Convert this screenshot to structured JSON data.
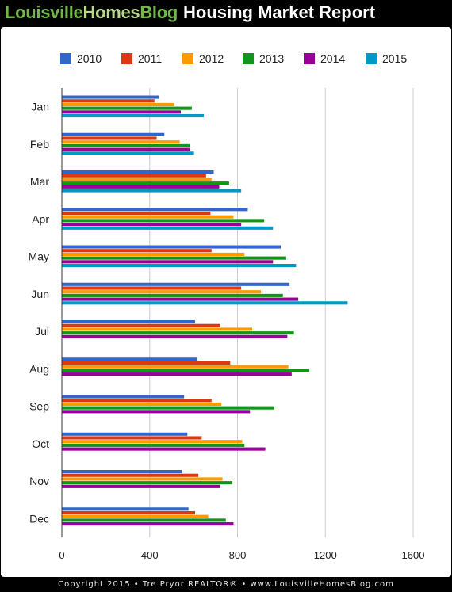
{
  "header": {
    "brand_part1": "Louisville",
    "brand_part2": "Homes",
    "brand_part3": "Blog",
    "title": "Housing Market Report"
  },
  "footer": {
    "text": "Copyright 2015 • Tre Pryor REALTOR® • www.LouisvilleHomesBlog.com"
  },
  "chart_data": {
    "type": "bar",
    "orientation": "horizontal",
    "title": "Housing Market Report",
    "categories": [
      "Jan",
      "Feb",
      "Mar",
      "Apr",
      "May",
      "Jun",
      "Jul",
      "Aug",
      "Sep",
      "Oct",
      "Nov",
      "Dec"
    ],
    "series": [
      {
        "name": "2010",
        "color": "#3366cc",
        "values": [
          440,
          465,
          690,
          845,
          995,
          1035,
          605,
          615,
          555,
          570,
          545,
          575
        ]
      },
      {
        "name": "2011",
        "color": "#dc3912",
        "values": [
          420,
          430,
          655,
          675,
          680,
          815,
          720,
          765,
          680,
          635,
          620,
          605
        ]
      },
      {
        "name": "2012",
        "color": "#ff9900",
        "values": [
          510,
          535,
          680,
          780,
          830,
          905,
          865,
          1030,
          725,
          820,
          730,
          665
        ]
      },
      {
        "name": "2013",
        "color": "#109618",
        "values": [
          590,
          580,
          760,
          920,
          1020,
          1005,
          1055,
          1125,
          965,
          830,
          775,
          745
        ]
      },
      {
        "name": "2014",
        "color": "#990099",
        "values": [
          540,
          580,
          715,
          815,
          960,
          1075,
          1025,
          1045,
          855,
          925,
          720,
          780
        ]
      },
      {
        "name": "2015",
        "color": "#0099c6",
        "values": [
          645,
          600,
          815,
          960,
          1065,
          1300,
          null,
          null,
          null,
          null,
          null,
          null
        ]
      }
    ],
    "xlim": [
      0,
      1600
    ],
    "x_ticks": [
      0,
      400,
      800,
      1200,
      1600
    ],
    "grid": true,
    "legend_position": "top"
  }
}
